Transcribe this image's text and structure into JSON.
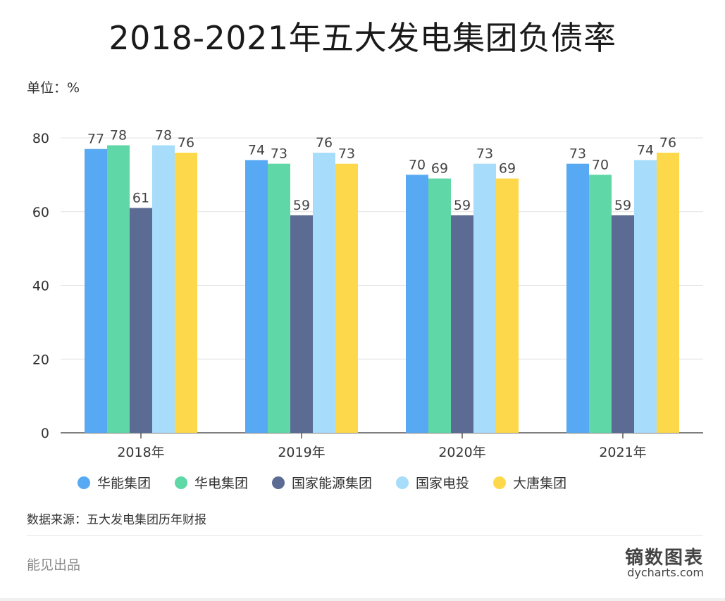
{
  "chart_data": {
    "type": "bar",
    "title": "2018-2021年五大发电集团负债率",
    "unit_label": "单位：%",
    "categories": [
      "2018年",
      "2019年",
      "2020年",
      "2021年"
    ],
    "series": [
      {
        "name": "华能集团",
        "color": "#58a9f3",
        "values": [
          77,
          74,
          70,
          73
        ]
      },
      {
        "name": "华电集团",
        "color": "#5fd7a6",
        "values": [
          78,
          73,
          69,
          70
        ]
      },
      {
        "name": "国家能源集团",
        "color": "#5b6b93",
        "values": [
          61,
          59,
          59,
          59
        ]
      },
      {
        "name": "国家电投",
        "color": "#a7dcfa",
        "values": [
          78,
          76,
          73,
          74
        ]
      },
      {
        "name": "大唐集团",
        "color": "#fdd84a",
        "values": [
          76,
          73,
          69,
          76
        ]
      }
    ],
    "ylim": [
      0,
      80
    ],
    "yticks": [
      0,
      20,
      40,
      60,
      80
    ],
    "grid": true,
    "legend_position": "bottom"
  },
  "footer": {
    "source": "数据来源：五大发电集团历年财报",
    "producer": "能见出品",
    "brand_cn": "镝数图表",
    "brand_en": "dycharts.com"
  }
}
